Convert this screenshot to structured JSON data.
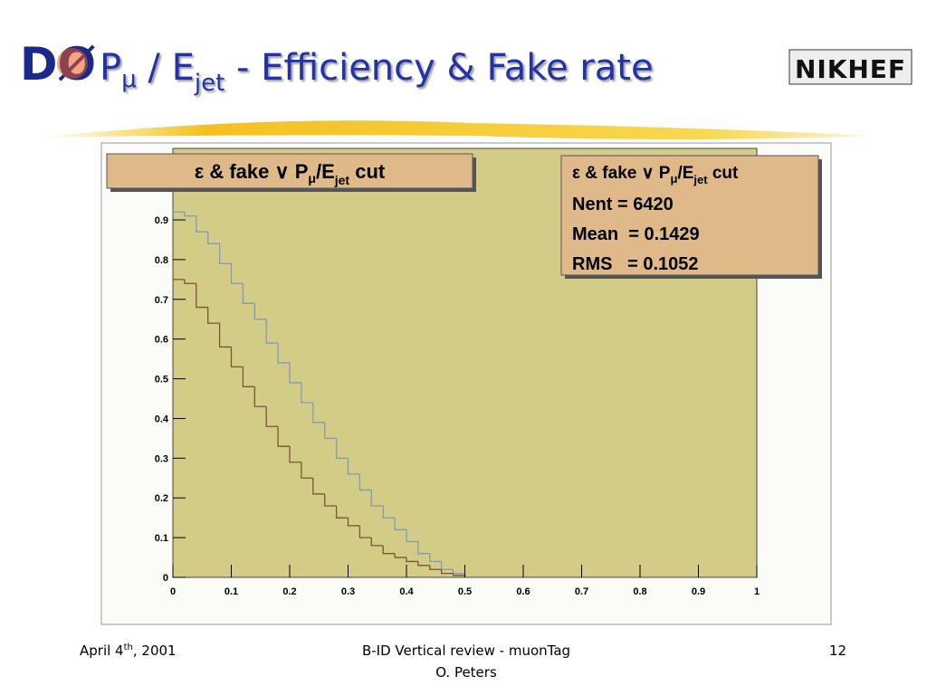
{
  "slide": {
    "logo_left": "DØ",
    "logo_right": "NIKHEF",
    "title": {
      "p": "P",
      "p_sub": "μ",
      "mid": " / E",
      "e_sub": "jet",
      "rest": " - Efficiency & Fake rate"
    },
    "footer": {
      "date": "April 4",
      "date_sup": "th",
      "date_rest": ", 2001",
      "center_1": "B-ID Vertical review - muonTag",
      "center_2": "O. Peters",
      "page": "12"
    }
  },
  "chart_data": {
    "type": "histogram",
    "title": {
      "a": "ε & fake ∨ P",
      "a_sub": "μ",
      "b": "/E",
      "b_sub": "jet",
      "c": " cut"
    },
    "stats": {
      "title": {
        "a": "ε & fake ∨ P",
        "a_sub": "μ",
        "b": "/E",
        "b_sub": "jet",
        "c": " cut"
      },
      "lines": [
        "Nent = 6420",
        "Mean  = 0.1429",
        "RMS   = 0.1052"
      ]
    },
    "bins": [
      0,
      0.02,
      0.04,
      0.06,
      0.08,
      0.1,
      0.12,
      0.14,
      0.16,
      0.18,
      0.2,
      0.22,
      0.24,
      0.26,
      0.28,
      0.3,
      0.32,
      0.34,
      0.36,
      0.38,
      0.4,
      0.42,
      0.44,
      0.46,
      0.48,
      0.5
    ],
    "series": [
      {
        "color": "#7f9bbb",
        "values": [
          0.92,
          0.91,
          0.87,
          0.84,
          0.79,
          0.74,
          0.69,
          0.65,
          0.59,
          0.54,
          0.49,
          0.44,
          0.39,
          0.35,
          0.3,
          0.26,
          0.22,
          0.18,
          0.15,
          0.12,
          0.09,
          0.06,
          0.04,
          0.02,
          0.01
        ]
      },
      {
        "color": "#7a5634",
        "values": [
          0.75,
          0.74,
          0.68,
          0.64,
          0.58,
          0.53,
          0.48,
          0.43,
          0.38,
          0.33,
          0.29,
          0.25,
          0.21,
          0.18,
          0.15,
          0.13,
          0.1,
          0.08,
          0.06,
          0.05,
          0.04,
          0.03,
          0.02,
          0.01,
          0.005
        ]
      }
    ],
    "xlim": [
      0,
      1
    ],
    "xticks": [
      0,
      0.1,
      0.2,
      0.3,
      0.4,
      0.5,
      0.6,
      0.7,
      0.8,
      0.9,
      1
    ],
    "ylim": [
      0,
      1.08
    ],
    "yticks": [
      0,
      0.1,
      0.2,
      0.3,
      0.4,
      0.5,
      0.6,
      0.7,
      0.8,
      0.9
    ],
    "plot_color": "#d3cc86"
  }
}
